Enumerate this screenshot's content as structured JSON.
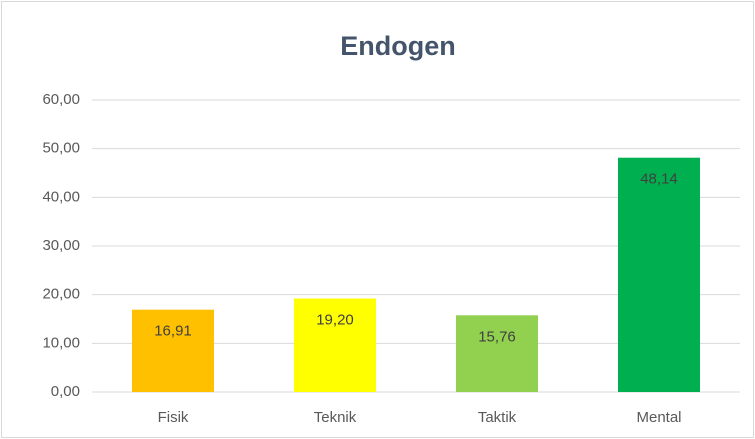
{
  "chart_data": {
    "type": "bar",
    "title": "Endogen",
    "categories": [
      "Fisik",
      "Teknik",
      "Taktik",
      "Mental"
    ],
    "values": [
      16.91,
      19.2,
      15.76,
      48.14
    ],
    "value_labels": [
      "16,91",
      "19,20",
      "15,76",
      "48,14"
    ],
    "colors": [
      "#FFC000",
      "#FFFF00",
      "#92D050",
      "#00B050"
    ],
    "ylim": [
      0,
      60
    ],
    "yticks": [
      {
        "value": 0,
        "label": "0,00"
      },
      {
        "value": 10,
        "label": "10,00"
      },
      {
        "value": 20,
        "label": "20,00"
      },
      {
        "value": 30,
        "label": "30,00"
      },
      {
        "value": 40,
        "label": "40,00"
      },
      {
        "value": 50,
        "label": "50,00"
      },
      {
        "value": 60,
        "label": "60,00"
      }
    ],
    "grid": true
  }
}
